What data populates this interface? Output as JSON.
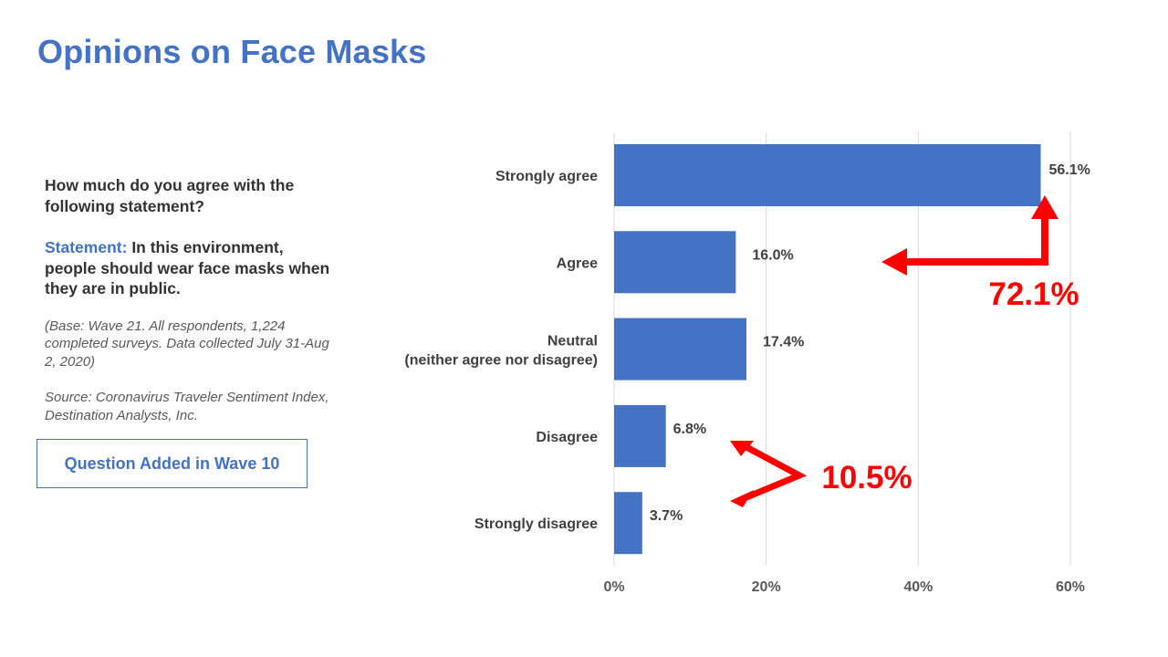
{
  "title": "Opinions on Face Masks",
  "question": "How much do you agree with the following statement?",
  "statement": {
    "label": "Statement:",
    "text": "In this environment, people should wear face masks when they are in public."
  },
  "base_note": "(Base: Wave 21. All respondents, 1,224 completed surveys. Data collected July 31-Aug 2, 2020)",
  "source_note": "Source: Coronavirus Traveler Sentiment Index, Destination Analysts, Inc.",
  "wave_box": "Question Added in Wave 10",
  "colors": {
    "accent": "#4472C4",
    "callout": "#FF0000"
  },
  "chart_data": {
    "type": "bar",
    "orientation": "horizontal",
    "categories": [
      [
        "Strongly agree"
      ],
      [
        "Agree"
      ],
      [
        "Neutral",
        "(neither agree nor disagree)"
      ],
      [
        "Disagree"
      ],
      [
        "Strongly disagree"
      ]
    ],
    "values": [
      56.1,
      16.0,
      17.4,
      6.8,
      3.7
    ],
    "value_labels": [
      "56.1%",
      "16.0%",
      "17.4%",
      "6.8%",
      "3.7%"
    ],
    "xlim": [
      0,
      60
    ],
    "xticks": [
      0,
      20,
      40,
      60
    ],
    "xtick_labels": [
      "0%",
      "20%",
      "40%",
      "60%"
    ],
    "grid": true,
    "bar_color": "#4472C4",
    "annotations": [
      {
        "text": "72.1%",
        "groups": [
          "Strongly agree",
          "Agree"
        ],
        "color": "#FF0000"
      },
      {
        "text": "10.5%",
        "groups": [
          "Disagree",
          "Strongly disagree"
        ],
        "color": "#FF0000"
      }
    ]
  }
}
